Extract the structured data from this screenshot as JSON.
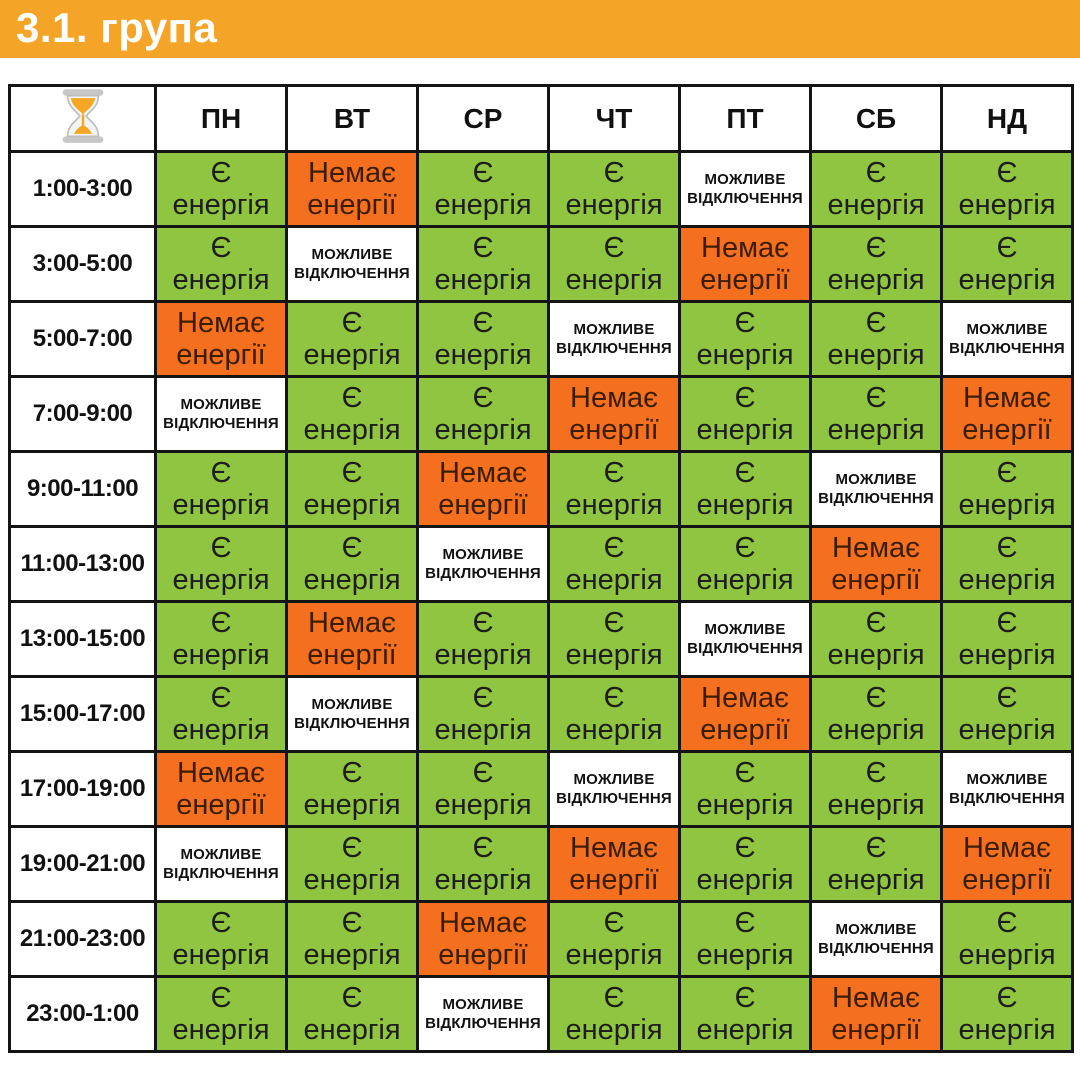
{
  "header": {
    "title": "3.1. група",
    "bg": "#f4a427",
    "title_color": "#ffffff"
  },
  "icons": {
    "corner": "hourglass-icon"
  },
  "chart_data": {
    "type": "table",
    "title": "3.1. група",
    "columns": [
      "ПН",
      "ВТ",
      "СР",
      "ЧТ",
      "ПТ",
      "СБ",
      "НД"
    ],
    "time_slots": [
      "1:00-3:00",
      "3:00-5:00",
      "5:00-7:00",
      "7:00-9:00",
      "9:00-11:00",
      "11:00-13:00",
      "13:00-15:00",
      "15:00-17:00",
      "17:00-19:00",
      "19:00-21:00",
      "21:00-23:00",
      "23:00-1:00"
    ],
    "grid": [
      [
        "on",
        "off",
        "on",
        "on",
        "maybe",
        "on",
        "on"
      ],
      [
        "on",
        "maybe",
        "on",
        "on",
        "off",
        "on",
        "on"
      ],
      [
        "off",
        "on",
        "on",
        "maybe",
        "on",
        "on",
        "maybe"
      ],
      [
        "maybe",
        "on",
        "on",
        "off",
        "on",
        "on",
        "off"
      ],
      [
        "on",
        "on",
        "off",
        "on",
        "on",
        "maybe",
        "on"
      ],
      [
        "on",
        "on",
        "maybe",
        "on",
        "on",
        "off",
        "on"
      ],
      [
        "on",
        "off",
        "on",
        "on",
        "maybe",
        "on",
        "on"
      ],
      [
        "on",
        "maybe",
        "on",
        "on",
        "off",
        "on",
        "on"
      ],
      [
        "off",
        "on",
        "on",
        "maybe",
        "on",
        "on",
        "maybe"
      ],
      [
        "maybe",
        "on",
        "on",
        "off",
        "on",
        "on",
        "off"
      ],
      [
        "on",
        "on",
        "off",
        "on",
        "on",
        "maybe",
        "on"
      ],
      [
        "on",
        "on",
        "maybe",
        "on",
        "on",
        "off",
        "on"
      ]
    ],
    "states": {
      "on": {
        "label": "Є енергія",
        "bg": "#8fc540",
        "text": "#1d1d1b"
      },
      "off": {
        "label": "Немає енергії",
        "bg": "#f4701e",
        "text": "#3b1d06"
      },
      "maybe": {
        "label": "МОЖЛИВЕ ВІДКЛЮЧЕННЯ",
        "bg": "#ffffff",
        "text": "#111111"
      }
    },
    "grid_lines": "on",
    "border_color": "#141414"
  }
}
